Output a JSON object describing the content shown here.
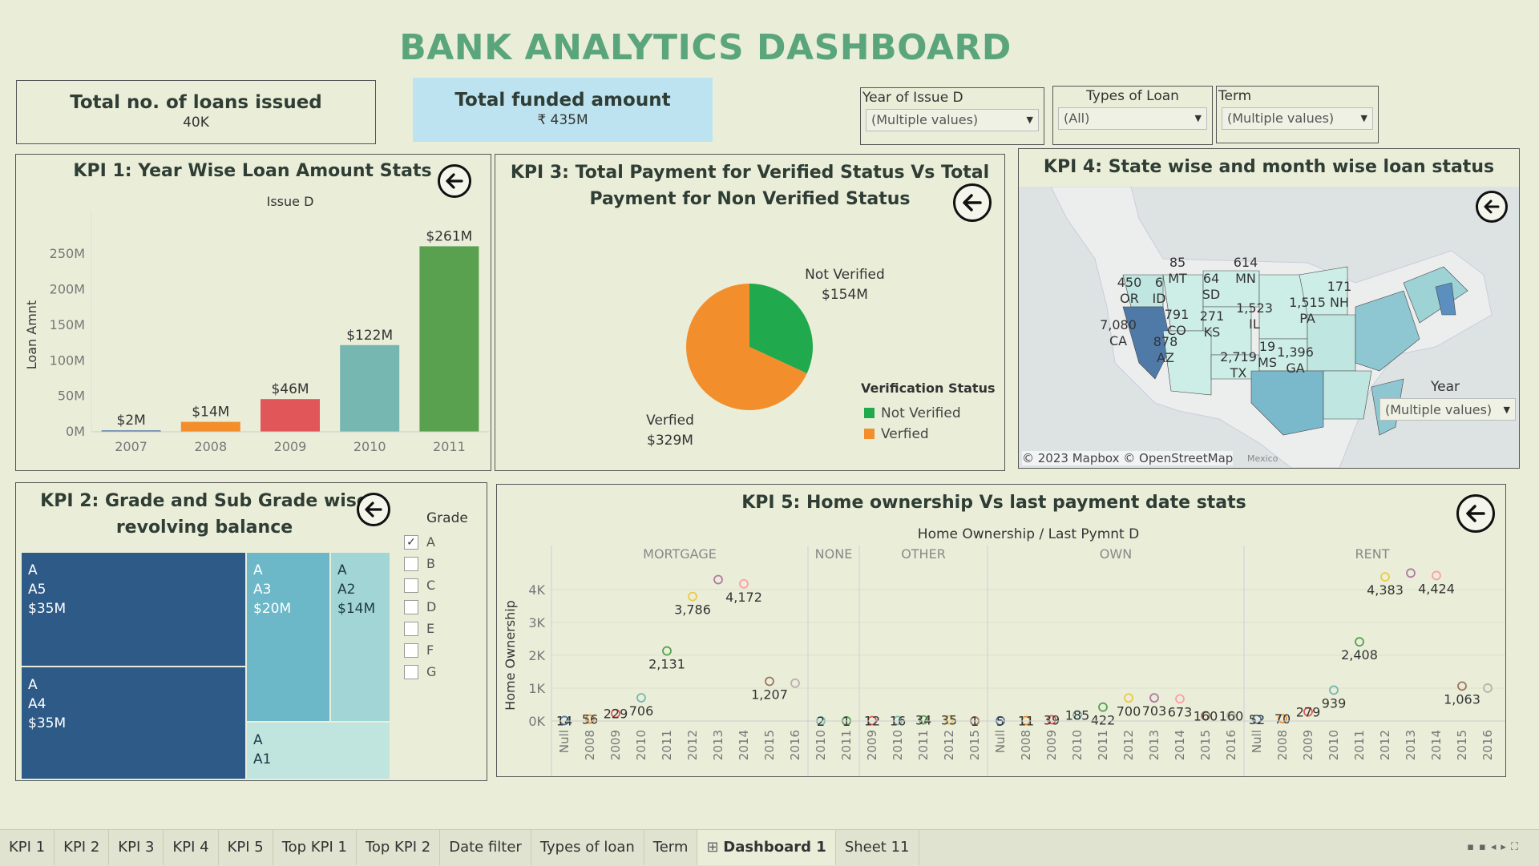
{
  "dashboard": {
    "title": "BANK ANALYTICS DASHBOARD"
  },
  "cards": {
    "loans": {
      "label": "Total no. of loans issued",
      "value": "40K"
    },
    "funded": {
      "label": "Total funded amount",
      "value": "₹ 435M"
    }
  },
  "filters": [
    {
      "label": "Year of Issue D",
      "value": "(Multiple values)"
    },
    {
      "label": "Types of Loan",
      "value": "(All)"
    },
    {
      "label": "Term",
      "value": "(Multiple values)"
    }
  ],
  "kpi1": {
    "title": "KPI 1: Year Wise Loan Amount Stats",
    "chart_data": {
      "type": "bar",
      "title": "Issue D",
      "ylabel": "Loan Amnt",
      "categories": [
        "2007",
        "2008",
        "2009",
        "2010",
        "2011"
      ],
      "values": [
        2,
        14,
        46,
        122,
        261
      ],
      "labels": [
        "$2M",
        "$14M",
        "$46M",
        "$122M",
        "$261M"
      ],
      "colors": [
        "#4e79a7",
        "#f28e2b",
        "#e15759",
        "#76b7b2",
        "#59a14f"
      ],
      "yticks": [
        "0M",
        "50M",
        "100M",
        "150M",
        "200M",
        "250M"
      ],
      "ylim": [
        0,
        275
      ]
    }
  },
  "kpi3": {
    "title_line1": "KPI 3: Total Payment for Verified Status Vs Total",
    "title_line2": "Payment for Non Verified Status",
    "chart_data": {
      "type": "pie",
      "slices": [
        {
          "name": "Not Verified",
          "value": 154,
          "label": "$154M",
          "color": "#21a94d"
        },
        {
          "name": "Verfied",
          "value": 329,
          "label": "$329M",
          "color": "#f28e2b"
        }
      ],
      "legend_title": "Verification Status"
    }
  },
  "kpi4": {
    "title": "KPI 4: State wise and month wise loan status",
    "year_filter_label": "Year",
    "year_filter_value": "(Multiple values)",
    "attribution": "© 2023 Mapbox © OpenStreetMap",
    "mexico": "Mexico",
    "states": [
      {
        "value": "450",
        "code": "OR"
      },
      {
        "value": "6",
        "code": "ID"
      },
      {
        "value": "85",
        "code": "MT"
      },
      {
        "value": "64",
        "code": "SD"
      },
      {
        "value": "614",
        "code": "MN"
      },
      {
        "value": "171",
        "code": "NH"
      },
      {
        "value": "7,080",
        "code": "CA"
      },
      {
        "value": "791",
        "code": "CO"
      },
      {
        "value": "271",
        "code": "KS"
      },
      {
        "value": "1,523",
        "code": "IL"
      },
      {
        "value": "1,515",
        "code": "PA"
      },
      {
        "value": "878",
        "code": "AZ"
      },
      {
        "value": "2,719",
        "code": "TX"
      },
      {
        "value": "19",
        "code": "MS"
      },
      {
        "value": "1,396",
        "code": "GA"
      }
    ]
  },
  "kpi2": {
    "title_line1": "KPI 2: Grade and Sub Grade wise",
    "title_line2": "revolving balance",
    "legend_title": "Grade",
    "grades": [
      {
        "label": "A",
        "checked": true
      },
      {
        "label": "B",
        "checked": false
      },
      {
        "label": "C",
        "checked": false
      },
      {
        "label": "D",
        "checked": false
      },
      {
        "label": "E",
        "checked": false
      },
      {
        "label": "F",
        "checked": false
      },
      {
        "label": "G",
        "checked": false
      }
    ],
    "tiles": [
      {
        "grade": "A",
        "sub": "A5",
        "value": "$35M",
        "color": "#2e5a87"
      },
      {
        "grade": "A",
        "sub": "A4",
        "value": "$35M",
        "color": "#2e5a87"
      },
      {
        "grade": "A",
        "sub": "A3",
        "value": "$20M",
        "color": "#6cb8c8"
      },
      {
        "grade": "A",
        "sub": "A2",
        "value": "$14M",
        "color": "#a2d5d5"
      },
      {
        "grade": "A",
        "sub": "A1",
        "value": "",
        "color": "#bfe5de"
      }
    ]
  },
  "kpi5": {
    "title": "KPI 5: Home ownership Vs last payment date stats",
    "header": "Home Ownership  /  Last Pymnt D",
    "ylabel": "Home Ownership",
    "yticks": [
      "0K",
      "1K",
      "2K",
      "3K",
      "4K"
    ],
    "chart_data": {
      "type": "scatter",
      "groups": [
        {
          "name": "MORTGAGE",
          "years": [
            "Null",
            "2008",
            "2009",
            "2010",
            "2011",
            "2012",
            "2013",
            "2014",
            "2015",
            "2016"
          ],
          "values": [
            14,
            56,
            229,
            706,
            2131,
            3786,
            4300,
            4172,
            1207,
            1150
          ],
          "labels": [
            "14",
            "56",
            "229",
            "706",
            "2,131",
            "3,786",
            "",
            "4,172",
            "1,207",
            ""
          ]
        },
        {
          "name": "NONE",
          "years": [
            "2010",
            "2011"
          ],
          "values": [
            2,
            1
          ],
          "labels": [
            "2",
            "1"
          ]
        },
        {
          "name": "OTHER",
          "years": [
            "2009",
            "2010",
            "2011",
            "2012",
            "2015"
          ],
          "values": [
            12,
            16,
            34,
            35,
            1
          ],
          "labels": [
            "12",
            "16",
            "34",
            "35",
            "1"
          ]
        },
        {
          "name": "OWN",
          "years": [
            "Null",
            "2008",
            "2009",
            "2010",
            "2011",
            "2012",
            "2013",
            "2014",
            "2015",
            "2016"
          ],
          "values": [
            5,
            11,
            39,
            185,
            422,
            700,
            703,
            673,
            160,
            160
          ],
          "labels": [
            "5",
            "11",
            "39",
            "185",
            "422",
            "700",
            "703",
            "673",
            "160",
            "160"
          ]
        },
        {
          "name": "RENT",
          "years": [
            "Null",
            "2008",
            "2009",
            "2010",
            "2011",
            "2012",
            "2013",
            "2014",
            "2015",
            "2016"
          ],
          "values": [
            52,
            70,
            279,
            939,
            2408,
            4383,
            4500,
            4424,
            1063,
            1000
          ],
          "labels": [
            "52",
            "70",
            "279",
            "939",
            "2,408",
            "4,383",
            "",
            "4,424",
            "1,063",
            ""
          ]
        }
      ]
    }
  },
  "tabs": [
    "KPI 1",
    "KPI 2",
    "KPI 3",
    "KPI 4",
    "KPI 5",
    "Top KPI 1",
    "Top KPI 2",
    "Date filter",
    "Types of loan",
    "Term",
    "Dashboard 1",
    "Sheet 11"
  ],
  "active_tab": "Dashboard 1",
  "icons": {
    "back": "arrow-left-icon",
    "dashboard_tab": "grid-icon"
  }
}
